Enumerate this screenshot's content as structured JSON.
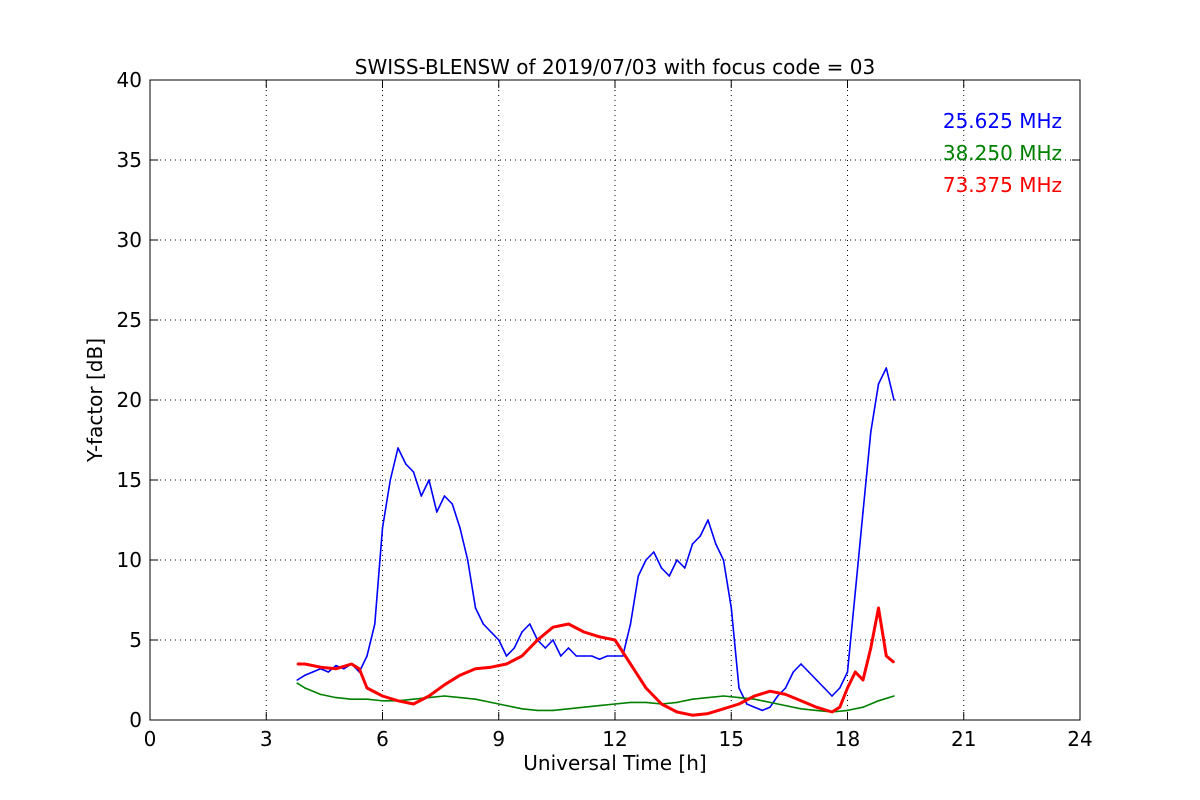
{
  "chart_data": {
    "type": "line",
    "title": "SWISS-BLENSW of 2019/07/03 with focus code = 03",
    "xlabel": "Universal Time [h]",
    "ylabel": "Y-factor [dB]",
    "xlim": [
      0,
      24
    ],
    "ylim": [
      0,
      40
    ],
    "xticks": [
      0,
      3,
      6,
      9,
      12,
      15,
      18,
      21,
      24
    ],
    "yticks": [
      0,
      5,
      10,
      15,
      20,
      25,
      30,
      35,
      40
    ],
    "xtick_labels": [
      "0",
      "3",
      "6",
      "9",
      "12",
      "15",
      "18",
      "21",
      "24"
    ],
    "ytick_labels": [
      "0",
      "5",
      "10",
      "15",
      "20",
      "25",
      "30",
      "35",
      "40"
    ],
    "grid": true,
    "legend": {
      "placement": "top-right",
      "entries": [
        "25.625 MHz",
        "38.250 MHz",
        "73.375 MHz"
      ]
    },
    "series": [
      {
        "name": "25.625 MHz",
        "color": "#0000ff",
        "x": [
          3.8,
          4.0,
          4.2,
          4.4,
          4.6,
          4.8,
          5.0,
          5.2,
          5.4,
          5.6,
          5.8,
          6.0,
          6.2,
          6.4,
          6.6,
          6.8,
          7.0,
          7.2,
          7.4,
          7.6,
          7.8,
          8.0,
          8.2,
          8.4,
          8.6,
          8.8,
          9.0,
          9.2,
          9.4,
          9.6,
          9.8,
          10.0,
          10.2,
          10.4,
          10.6,
          10.8,
          11.0,
          11.2,
          11.4,
          11.6,
          11.8,
          12.0,
          12.2,
          12.4,
          12.6,
          12.8,
          13.0,
          13.2,
          13.4,
          13.6,
          13.8,
          14.0,
          14.2,
          14.4,
          14.6,
          14.8,
          15.0,
          15.2,
          15.4,
          15.6,
          15.8,
          16.0,
          16.2,
          16.4,
          16.6,
          16.8,
          17.0,
          17.2,
          17.4,
          17.6,
          17.8,
          18.0,
          18.2,
          18.4,
          18.6,
          18.8,
          19.0,
          19.2
        ],
        "y": [
          2.5,
          2.8,
          3.0,
          3.2,
          3.0,
          3.4,
          3.2,
          3.5,
          3.0,
          4.0,
          6.0,
          12.0,
          15.0,
          17.0,
          16.0,
          15.5,
          14.0,
          15.0,
          13.0,
          14.0,
          13.5,
          12.0,
          10.0,
          7.0,
          6.0,
          5.5,
          5.0,
          4.0,
          4.5,
          5.5,
          6.0,
          5.0,
          4.5,
          5.0,
          4.0,
          4.5,
          4.0,
          4.0,
          4.0,
          3.8,
          4.0,
          4.0,
          4.0,
          6.0,
          9.0,
          10.0,
          10.5,
          9.5,
          9.0,
          10.0,
          9.5,
          11.0,
          11.5,
          12.5,
          11.0,
          10.0,
          7.0,
          2.0,
          1.0,
          0.8,
          0.6,
          0.8,
          1.5,
          2.0,
          3.0,
          3.5,
          3.0,
          2.5,
          2.0,
          1.5,
          2.0,
          3.0,
          8.0,
          13.0,
          18.0,
          21.0,
          22.0,
          20.0
        ]
      },
      {
        "name": "38.250 MHz",
        "color": "#008000",
        "x": [
          3.8,
          4.0,
          4.4,
          4.8,
          5.2,
          5.6,
          6.0,
          6.4,
          6.8,
          7.2,
          7.6,
          8.0,
          8.4,
          8.8,
          9.2,
          9.6,
          10.0,
          10.4,
          10.8,
          11.2,
          11.6,
          12.0,
          12.4,
          12.8,
          13.2,
          13.6,
          14.0,
          14.4,
          14.8,
          15.2,
          15.6,
          16.0,
          16.4,
          16.8,
          17.2,
          17.6,
          18.0,
          18.4,
          18.8,
          19.2
        ],
        "y": [
          2.3,
          2.0,
          1.6,
          1.4,
          1.3,
          1.3,
          1.2,
          1.2,
          1.3,
          1.4,
          1.5,
          1.4,
          1.3,
          1.1,
          0.9,
          0.7,
          0.6,
          0.6,
          0.7,
          0.8,
          0.9,
          1.0,
          1.1,
          1.1,
          1.0,
          1.1,
          1.3,
          1.4,
          1.5,
          1.4,
          1.3,
          1.1,
          0.9,
          0.7,
          0.6,
          0.5,
          0.6,
          0.8,
          1.2,
          1.5
        ]
      },
      {
        "name": "73.375 MHz",
        "color": "#ff0000",
        "x": [
          3.8,
          4.0,
          4.4,
          4.8,
          5.2,
          5.4,
          5.6,
          6.0,
          6.4,
          6.8,
          7.2,
          7.6,
          8.0,
          8.4,
          8.8,
          9.2,
          9.6,
          10.0,
          10.4,
          10.8,
          11.2,
          11.6,
          12.0,
          12.4,
          12.8,
          13.2,
          13.6,
          14.0,
          14.4,
          14.8,
          15.2,
          15.6,
          16.0,
          16.4,
          16.8,
          17.2,
          17.6,
          17.8,
          18.0,
          18.2,
          18.4,
          18.6,
          18.8,
          19.0,
          19.2
        ],
        "y": [
          3.5,
          3.5,
          3.3,
          3.2,
          3.5,
          3.2,
          2.0,
          1.5,
          1.2,
          1.0,
          1.5,
          2.2,
          2.8,
          3.2,
          3.3,
          3.5,
          4.0,
          5.0,
          5.8,
          6.0,
          5.5,
          5.2,
          5.0,
          3.5,
          2.0,
          1.0,
          0.5,
          0.3,
          0.4,
          0.7,
          1.0,
          1.5,
          1.8,
          1.6,
          1.2,
          0.8,
          0.5,
          0.8,
          2.0,
          3.0,
          2.5,
          4.5,
          7.0,
          4.0,
          3.6
        ]
      }
    ]
  }
}
